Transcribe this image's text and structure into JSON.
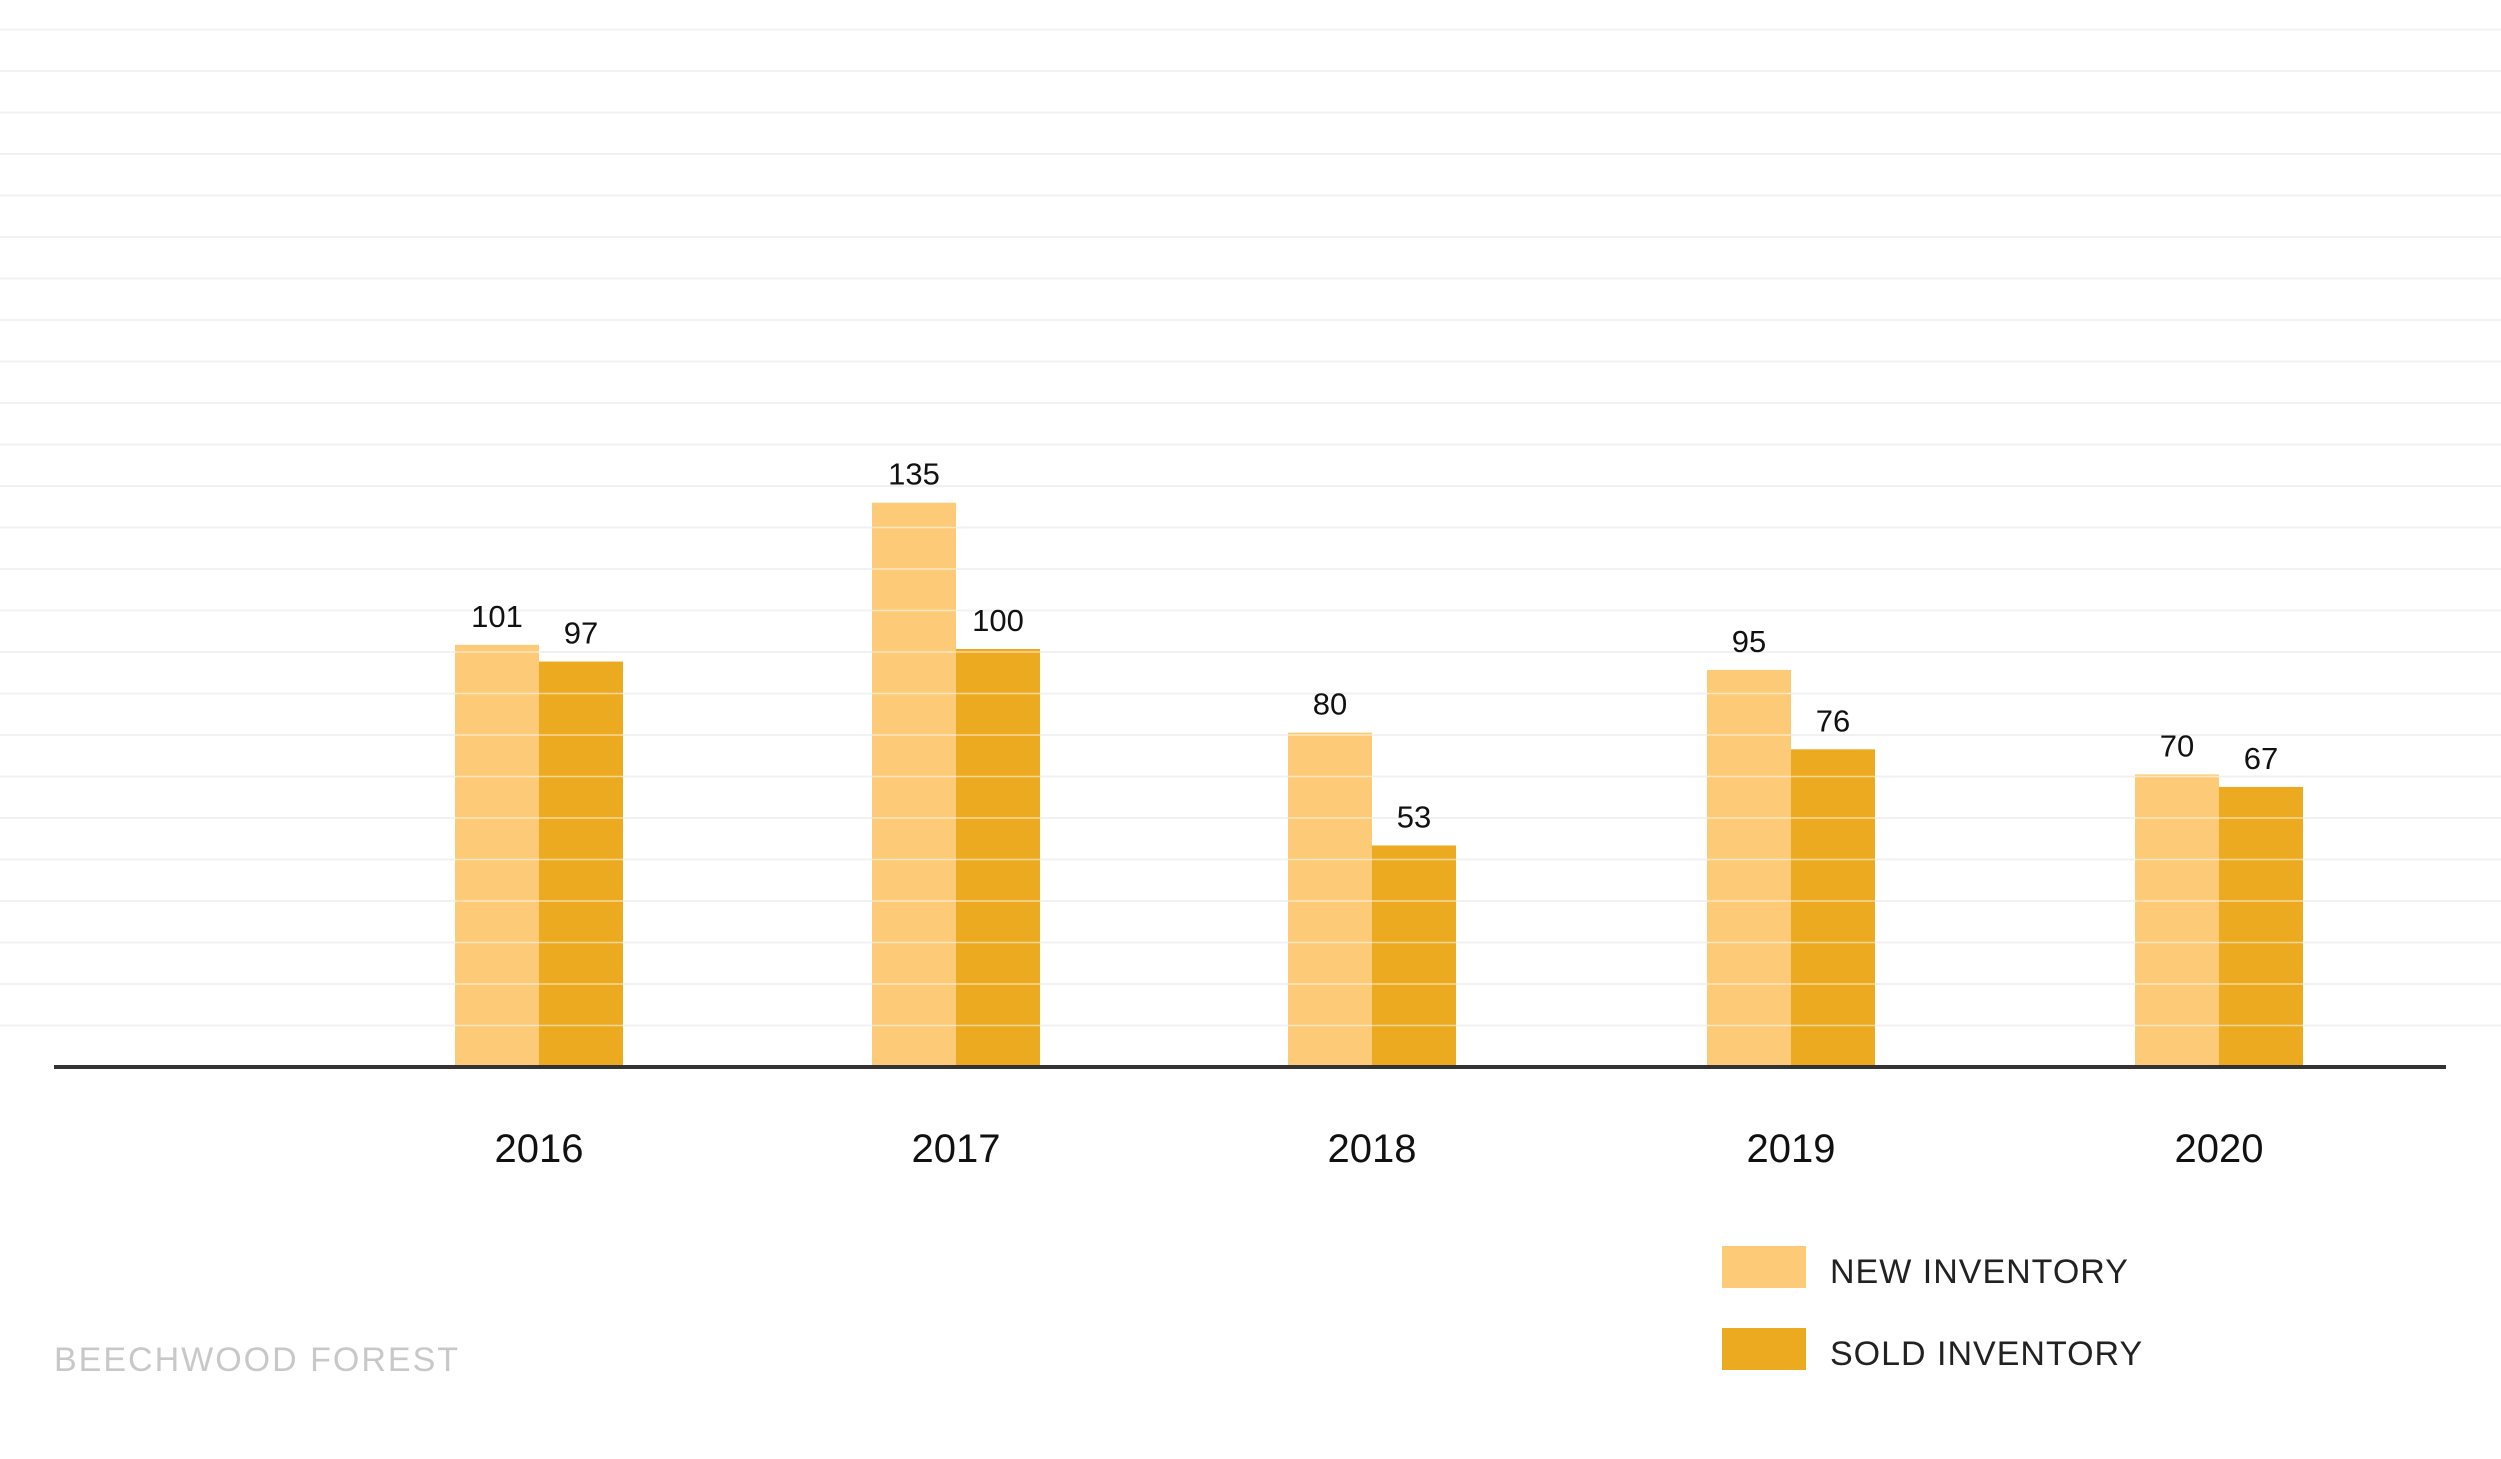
{
  "chart_data": {
    "type": "bar",
    "categories": [
      "2016",
      "2017",
      "2018",
      "2019",
      "2020"
    ],
    "series": [
      {
        "name": "NEW INVENTORY",
        "values": [
          101,
          135,
          80,
          95,
          70
        ],
        "color": "#FDCB77"
      },
      {
        "name": "SOLD INVENTORY",
        "values": [
          97,
          100,
          53,
          76,
          67
        ],
        "color": "#ECAA21"
      }
    ],
    "ylim": [
      0,
      250
    ],
    "grid": true,
    "legend_position": "bottom-right",
    "colors": {
      "grid": "#f1f1f1",
      "bar_separator": "#ffffff",
      "axis": "#333333"
    }
  },
  "watermark": "BEECHWOOD FOREST"
}
